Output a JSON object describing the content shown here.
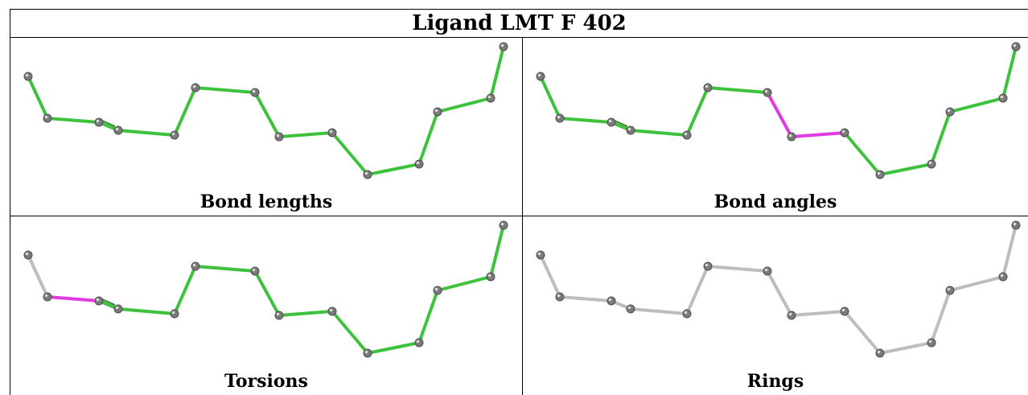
{
  "title": "Ligand LMT F 402",
  "colors": {
    "ok": "#3ec23e",
    "ok_dark": "#2f8a2f",
    "outlier": "#e03be0",
    "neutral": "#bdbdbd",
    "atom": "#7a7a7a"
  },
  "panels": [
    {
      "label": "Bond lengths",
      "bond_colors": [
        "ok",
        "ok",
        "ok",
        "ok",
        "ok",
        "ok",
        "ok",
        "ok",
        "ok",
        "ok",
        "ok",
        "ok",
        "ok",
        "ok"
      ]
    },
    {
      "label": "Bond angles",
      "bond_colors": [
        "ok",
        "ok",
        "ok",
        "ok",
        "ok",
        "ok",
        "outlier",
        "outlier",
        "ok",
        "ok",
        "ok",
        "ok",
        "ok",
        "ok"
      ]
    },
    {
      "label": "Torsions",
      "bond_colors": [
        "neutral",
        "outlier",
        "ok",
        "ok",
        "ok",
        "ok",
        "ok",
        "ok",
        "ok",
        "ok",
        "ok",
        "ok",
        "ok",
        "neutral"
      ]
    },
    {
      "label": "Rings",
      "bond_colors": [
        "neutral",
        "neutral",
        "neutral",
        "neutral",
        "neutral",
        "neutral",
        "neutral",
        "neutral",
        "neutral",
        "neutral",
        "neutral",
        "neutral",
        "neutral",
        "neutral"
      ]
    }
  ]
}
